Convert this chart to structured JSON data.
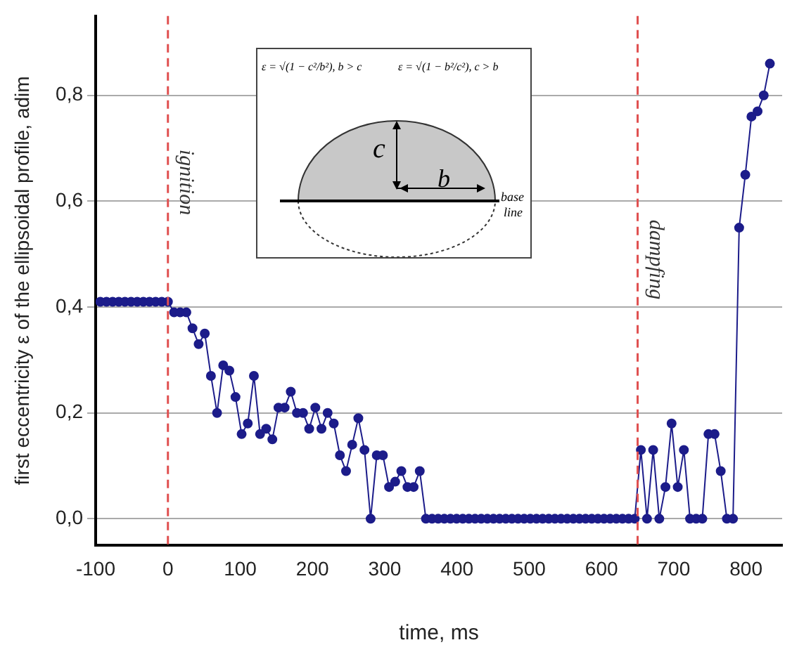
{
  "chart_data": {
    "type": "line",
    "xlabel": "time, ms",
    "ylabel": "first eccentricity ε of the ellipsoidal profile, adim",
    "x": [
      -93.5,
      -85,
      -76.5,
      -68,
      -59.5,
      -51,
      -42.5,
      -34,
      -25.5,
      -17,
      -8.5,
      0,
      8.5,
      17,
      25.5,
      34,
      42.5,
      51,
      59.5,
      68,
      76.5,
      85,
      93.5,
      102,
      110.5,
      119,
      127.5,
      136,
      144.5,
      153,
      161.5,
      170,
      178.5,
      187,
      195.5,
      204,
      212.5,
      221,
      229.5,
      238,
      246.5,
      255,
      263.5,
      272,
      280.5,
      289,
      297.5,
      306,
      314.5,
      323,
      331.5,
      340,
      348.5,
      357,
      365.5,
      374,
      382.5,
      391,
      399.5,
      408,
      416.5,
      425,
      433.5,
      442,
      450.5,
      459,
      467.5,
      476,
      484.5,
      493,
      501.5,
      510,
      518.5,
      527,
      535.5,
      544,
      552.5,
      561,
      569.5,
      578,
      586.5,
      595,
      603.5,
      612,
      620.5,
      629,
      637.5,
      646,
      654.5,
      663,
      671.5,
      680,
      688.5,
      697,
      705.5,
      714,
      722.5,
      731,
      739.5,
      748,
      756.5,
      765,
      773.5,
      782,
      790.5,
      799,
      807.5,
      816,
      824.5,
      833
    ],
    "series": [
      {
        "color": "#1c1c8a",
        "values": [
          0.41,
          0.41,
          0.41,
          0.41,
          0.41,
          0.41,
          0.41,
          0.41,
          0.41,
          0.41,
          0.41,
          0.41,
          0.39,
          0.39,
          0.39,
          0.36,
          0.33,
          0.35,
          0.27,
          0.2,
          0.29,
          0.28,
          0.23,
          0.16,
          0.18,
          0.27,
          0.16,
          0.17,
          0.15,
          0.21,
          0.21,
          0.24,
          0.2,
          0.2,
          0.17,
          0.21,
          0.17,
          0.2,
          0.18,
          0.12,
          0.09,
          0.14,
          0.19,
          0.13,
          0,
          0.12,
          0.12,
          0.06,
          0.07,
          0.09,
          0.06,
          0.06,
          0.09,
          0,
          0,
          0,
          0,
          0,
          0,
          0,
          0,
          0,
          0,
          0,
          0,
          0,
          0,
          0,
          0,
          0,
          0,
          0,
          0,
          0,
          0,
          0,
          0,
          0,
          0,
          0,
          0,
          0,
          0,
          0,
          0,
          0,
          0,
          0,
          0.13,
          0,
          0.13,
          0,
          0.06,
          0.18,
          0.06,
          0.13,
          0,
          0,
          0,
          0.16,
          0.16,
          0.09,
          0,
          0,
          0.55,
          0.65,
          0.76,
          0.77,
          0.8,
          0.86
        ]
      }
    ],
    "xlim": [
      -100,
      850
    ],
    "xticks": [
      -100,
      0,
      100,
      200,
      300,
      400,
      500,
      600,
      700,
      800
    ],
    "ylim": [
      -0.05,
      0.95
    ],
    "yticks": [
      {
        "value": 0,
        "label": "0,0"
      },
      {
        "value": 0.2,
        "label": "0,2"
      },
      {
        "value": 0.4,
        "label": "0,4"
      },
      {
        "value": 0.6,
        "label": "0,6"
      },
      {
        "value": 0.8,
        "label": "0,8"
      }
    ],
    "grid": "y",
    "marker": "circle",
    "line_style": "solid",
    "legend": false,
    "ref_lines": [
      {
        "axis": "x",
        "value": 0,
        "label": "ignition",
        "color": "#e05050",
        "line_style": "dashed"
      },
      {
        "axis": "x",
        "value": 650,
        "label": "dampfing",
        "color": "#e05050",
        "line_style": "dashed"
      }
    ],
    "annotations": [
      "ε = √(1 − c²/b²), b > c",
      "ε = √(1 − b²/c²), c > b",
      "c",
      "b",
      "base",
      "line"
    ]
  }
}
